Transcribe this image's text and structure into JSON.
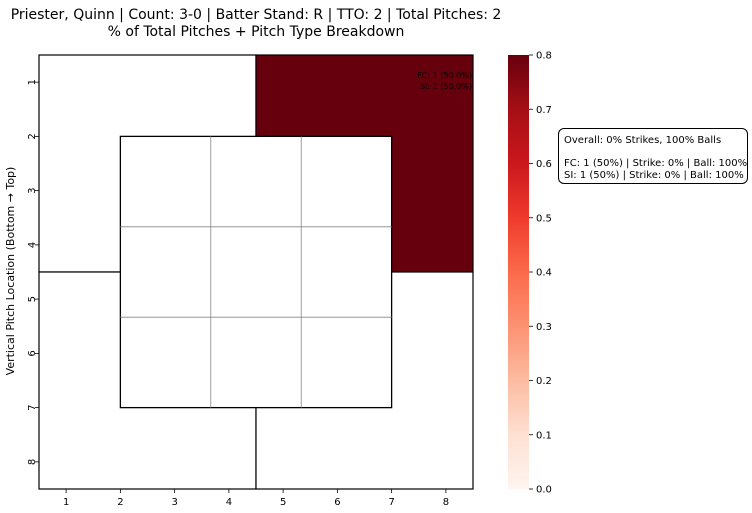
{
  "chart_data": {
    "type": "heatmap",
    "title": "Priester, Quinn | Count: 3-0 | Batter Stand: R | TTO: 2 | Total Pitches: 2",
    "subtitle": "% of Total Pitches + Pitch Type Breakdown",
    "xlabel": "",
    "ylabel": "Vertical Pitch Location (Bottom → Top)",
    "x_ticks": [
      "1",
      "2",
      "3",
      "4",
      "5",
      "6",
      "7",
      "8"
    ],
    "y_ticks": [
      "1",
      "2",
      "3",
      "4",
      "5",
      "6",
      "7",
      "8"
    ],
    "zones": [
      {
        "name": "top-left",
        "x_range": [
          1,
          4
        ],
        "y_range": [
          1,
          4
        ],
        "value": 0.0,
        "annotation": []
      },
      {
        "name": "top-right",
        "x_range": [
          5,
          8
        ],
        "y_range": [
          1,
          4
        ],
        "value": 1.0,
        "annotation": [
          "FC: 1 (50.0%)",
          "SI: 1 (50.0%)"
        ]
      },
      {
        "name": "bottom-left",
        "x_range": [
          1,
          4
        ],
        "y_range": [
          5,
          8
        ],
        "value": 0.0,
        "annotation": []
      },
      {
        "name": "bottom-right",
        "x_range": [
          5,
          8
        ],
        "y_range": [
          5,
          8
        ],
        "value": 0.0,
        "annotation": []
      }
    ],
    "strike_zone": {
      "x_range": [
        2,
        7
      ],
      "y_range": [
        2,
        7
      ],
      "grid": "3x3"
    },
    "colorbar": {
      "colormap": "Reds",
      "vmin": 0.0,
      "vmax": 0.8,
      "ticks": [
        "0.0",
        "0.1",
        "0.2",
        "0.3",
        "0.4",
        "0.5",
        "0.6",
        "0.7",
        "0.8"
      ]
    },
    "colors": {
      "max": "#67000d",
      "min": "#fff5f0"
    }
  },
  "summary": {
    "overall": "Overall: 0% Strikes, 100% Balls",
    "lines": [
      "FC: 1 (50%) | Strike: 0% | Ball: 100%",
      "SI: 1 (50%) | Strike: 0% | Ball: 100%"
    ]
  }
}
